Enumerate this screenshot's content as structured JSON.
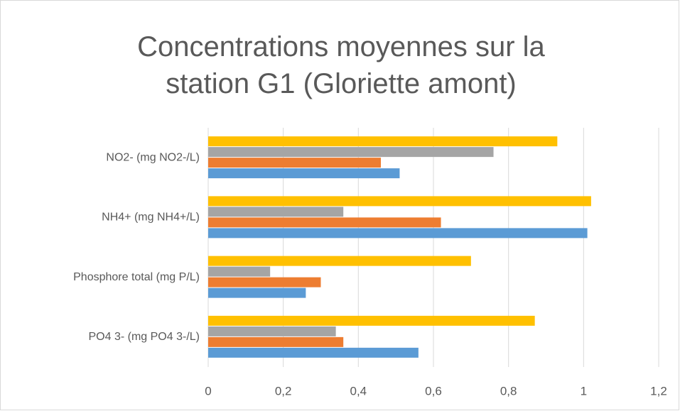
{
  "chart_data": {
    "type": "bar",
    "orientation": "horizontal",
    "title": "Concentrations moyennes sur la station G1 (Gloriette amont)",
    "categories": [
      "PO4 3- (mg PO4 3-/L)",
      "Phosphore total (mg P/L)",
      "NH4+ (mg NH4+/L)",
      "NO2- (mg NO2-/L)"
    ],
    "series": [
      {
        "color": "#5b9bd5",
        "values": [
          0.56,
          0.26,
          1.01,
          0.51
        ]
      },
      {
        "color": "#ed7d31",
        "values": [
          0.36,
          0.3,
          0.62,
          0.46
        ]
      },
      {
        "color": "#a5a5a5",
        "values": [
          0.34,
          0.165,
          0.36,
          0.76
        ]
      },
      {
        "color": "#ffc000",
        "values": [
          0.87,
          0.7,
          1.02,
          0.93
        ]
      }
    ],
    "xlim": [
      0,
      1.2
    ],
    "xticks": [
      0,
      {
        "value": 0.2,
        "label": "0,2"
      },
      {
        "value": 0.4,
        "label": "0,4"
      },
      {
        "value": 0.6,
        "label": "0,6"
      },
      {
        "value": 0.8,
        "label": "0,8"
      },
      1,
      {
        "value": 1.2,
        "label": "1,2"
      }
    ],
    "grid": true
  }
}
